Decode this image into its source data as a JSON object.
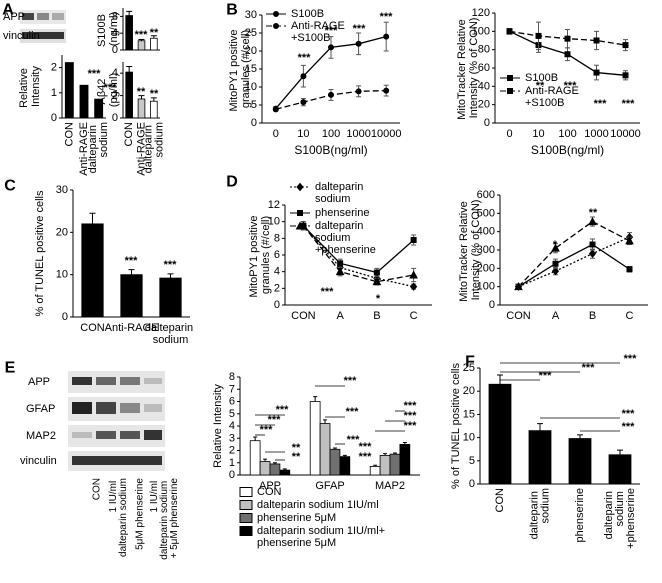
{
  "panels": [
    "A",
    "B",
    "C",
    "D",
    "E",
    "F"
  ],
  "blots": [
    {
      "labels": [
        "APP",
        "vinculin"
      ]
    },
    {
      "labels": [
        "APP",
        "GFAP",
        "MAP2",
        "vinculin"
      ],
      "lanes": [
        "CON",
        "1 IU/ml dalteparin sodium",
        "5μM phenserine",
        "1 IU/ml dalteparin sodium + 5μM phenserine"
      ]
    }
  ],
  "chart_data": [
    {
      "type": "bar",
      "ylabel": "Relative Intensity",
      "categories": [
        "CON",
        "Anti-RAGE",
        "dalteparin sodium"
      ],
      "values": [
        2.2,
        1.3,
        0.75
      ],
      "color": "#000000",
      "ylim": [
        0,
        2.5
      ],
      "yticks": [
        0,
        1,
        2
      ],
      "annotations": [
        "***",
        "***"
      ]
    },
    {
      "type": "bar",
      "ylabel": "S100B (ng/ml)",
      "categories": [
        null,
        null,
        null
      ],
      "values": [
        8.2,
        2.2,
        2.8
      ],
      "errors": [
        1,
        0.3,
        0.6
      ],
      "colors": [
        "#000000",
        "#c8c8c8",
        "#ffffff"
      ],
      "ylim": [
        0,
        10
      ],
      "yticks": [
        0,
        4,
        8
      ],
      "annotations": [
        "***",
        "**"
      ]
    },
    {
      "type": "bar",
      "ylabel": "Aβ42 (pg/ml)",
      "categories": [
        "CON",
        "Anti-RAGE",
        "dalteparin sodium"
      ],
      "values": [
        4.1,
        1.7,
        1.5
      ],
      "errors": [
        0.5,
        0.3,
        0.3
      ],
      "colors": [
        "#000000",
        "#c8c8c8",
        "#ffffff"
      ],
      "ylim": [
        0,
        5
      ],
      "yticks": [
        0,
        2,
        4
      ],
      "annotations": [
        "**",
        "**"
      ]
    },
    {
      "type": "line",
      "xlabel": "S100B(ng/ml)",
      "ylabel": "MitoPY1 positive granules (#/cell)",
      "categories": [
        "0",
        "10",
        "100",
        "1000",
        "10000"
      ],
      "series": [
        {
          "name": "S100B",
          "color": "#000000",
          "dash": "solid",
          "marker": "circle",
          "values": [
            4,
            13,
            21,
            22,
            24
          ],
          "errors": [
            0.5,
            3,
            3,
            3,
            4
          ]
        },
        {
          "name": "Anti-RAGE +S100B",
          "color": "#000000",
          "dash": "dashed",
          "marker": "circle",
          "values": [
            3.8,
            5.8,
            7.8,
            8.8,
            9
          ],
          "errors": [
            0.5,
            1,
            1.5,
            1.5,
            1.5
          ]
        }
      ],
      "ylim": [
        0,
        30
      ],
      "yticks": [
        0,
        5,
        10,
        15,
        20,
        25,
        30
      ],
      "legend": "upper left",
      "annotations": [
        "***",
        "***",
        "***",
        "***"
      ]
    },
    {
      "type": "line",
      "xlabel": "S100B(ng/ml)",
      "ylabel": "MitoTracker Relative Intensity (% of CON)",
      "categories": [
        "0",
        "10",
        "100",
        "1000",
        "10000"
      ],
      "series": [
        {
          "name": "S100B",
          "color": "#000000",
          "dash": "solid",
          "marker": "square",
          "values": [
            100,
            85,
            75,
            55,
            52
          ],
          "errors": [
            3,
            8,
            7,
            8,
            5
          ]
        },
        {
          "name": "Anti-RAGE +S100B",
          "color": "#000000",
          "dash": "dashed",
          "marker": "square",
          "values": [
            100,
            95,
            92,
            90,
            85
          ],
          "errors": [
            3,
            15,
            10,
            10,
            6
          ]
        }
      ],
      "ylim": [
        0,
        120
      ],
      "yticks": [
        0,
        20,
        40,
        60,
        80,
        100,
        120
      ],
      "legend": "lower left",
      "annotations": [
        "**",
        "***",
        "***",
        "***"
      ]
    },
    {
      "type": "bar",
      "ylabel": "% of TUNEL positive cells",
      "categories": [
        "CON",
        "Anti-RAGE",
        "dalteparin sodium"
      ],
      "values": [
        22,
        10,
        9.2
      ],
      "errors": [
        2.5,
        1.2,
        1
      ],
      "color": "#000000",
      "ylim": [
        0,
        30
      ],
      "yticks": [
        0,
        10,
        20,
        30
      ],
      "annotations": [
        "***",
        "***"
      ]
    },
    {
      "type": "line",
      "ylabel": "MitoPY1 positive granules (#/cell)",
      "categories": [
        "CON",
        "A",
        "B",
        "C"
      ],
      "series": [
        {
          "name": "dalteparin sodium",
          "color": "#000000",
          "dash": "dotted",
          "marker": "diamond",
          "values": [
            9.5,
            4.5,
            3.2,
            2.2
          ],
          "errors": [
            0.5,
            0.5,
            0.4,
            0.3
          ]
        },
        {
          "name": "phenserine",
          "color": "#000000",
          "dash": "solid",
          "marker": "square",
          "values": [
            9.5,
            5,
            3.9,
            7.8
          ],
          "errors": [
            0.5,
            0.5,
            0.5,
            0.6
          ]
        },
        {
          "name": "dalteparin sodium +phenserine",
          "color": "#000000",
          "dash": "dashed",
          "marker": "triangle",
          "values": [
            9.5,
            4,
            2.8,
            3.6
          ],
          "errors": [
            0.5,
            0.5,
            0.4,
            0.8
          ]
        }
      ],
      "ylim": [
        0,
        12
      ],
      "yticks": [
        0,
        2,
        4,
        6,
        8,
        10,
        12
      ],
      "legend": "above",
      "annotations": [
        "***",
        "*"
      ]
    },
    {
      "type": "line",
      "ylabel": "MitoTracker Relative Intensity (% of CON)",
      "categories": [
        "CON",
        "A",
        "B",
        "C"
      ],
      "series": [
        {
          "name": "dalteparin sodium",
          "color": "#000000",
          "dash": "dotted",
          "marker": "diamond",
          "values": [
            100,
            185,
            280,
            370
          ],
          "errors": [
            10,
            20,
            25,
            25
          ]
        },
        {
          "name": "phenserine",
          "color": "#000000",
          "dash": "solid",
          "marker": "square",
          "values": [
            100,
            225,
            330,
            195
          ],
          "errors": [
            10,
            25,
            30,
            15
          ]
        },
        {
          "name": "dalteparin sodium +phenserine",
          "color": "#000000",
          "dash": "dashed",
          "marker": "triangle",
          "values": [
            100,
            310,
            455,
            350
          ],
          "errors": [
            10,
            25,
            25,
            20
          ]
        }
      ],
      "ylim": [
        0,
        600
      ],
      "yticks": [
        0,
        100,
        200,
        300,
        400,
        500,
        600
      ],
      "annotations": [
        "*",
        "**"
      ]
    },
    {
      "type": "bar",
      "ylabel": "Relative Intensity",
      "categories": [
        "APP",
        "GFAP",
        "MAP2"
      ],
      "series": [
        {
          "name": "CON",
          "color": "#ffffff",
          "values": [
            2.8,
            6,
            0.7
          ],
          "errors": [
            0.3,
            0.4,
            0.1
          ]
        },
        {
          "name": "dalteparin sodium 1IU/ml",
          "color": "#c0c0c0",
          "values": [
            1.1,
            4.2,
            1.6
          ],
          "errors": [
            0.2,
            0.3,
            0.15
          ]
        },
        {
          "name": "phenserine 5μM",
          "color": "#707070",
          "values": [
            0.9,
            2.1,
            1.7
          ],
          "errors": [
            0.1,
            0.1,
            0.1
          ]
        },
        {
          "name": "dalteparin sodium 1IU/ml+ phenserine 5μM",
          "color": "#000000",
          "values": [
            0.4,
            1.5,
            2.5
          ],
          "errors": [
            0.1,
            0.1,
            0.15
          ]
        }
      ],
      "ylim": [
        0,
        8
      ],
      "yticks": [
        0,
        1,
        2,
        3,
        4,
        5,
        6,
        7,
        8
      ],
      "legend": "below",
      "annotations": [
        "***",
        "***",
        "***",
        "**",
        "**",
        "***",
        "***",
        "***",
        "***",
        "***",
        "***",
        "***",
        "***"
      ]
    },
    {
      "type": "bar",
      "ylabel": "% of TUNEL positive cells",
      "categories": [
        "CON",
        "dalteparin sodium",
        "phenserine",
        "dalteparin sodium +phenserine"
      ],
      "values": [
        21.5,
        11.5,
        9.8,
        6.3
      ],
      "errors": [
        2,
        1.5,
        0.8,
        1
      ],
      "color": "#000000",
      "ylim": [
        0,
        25
      ],
      "yticks": [
        0,
        5,
        10,
        15,
        20,
        25
      ],
      "annotations": [
        "***",
        "***",
        "***",
        "***",
        "***"
      ]
    }
  ]
}
